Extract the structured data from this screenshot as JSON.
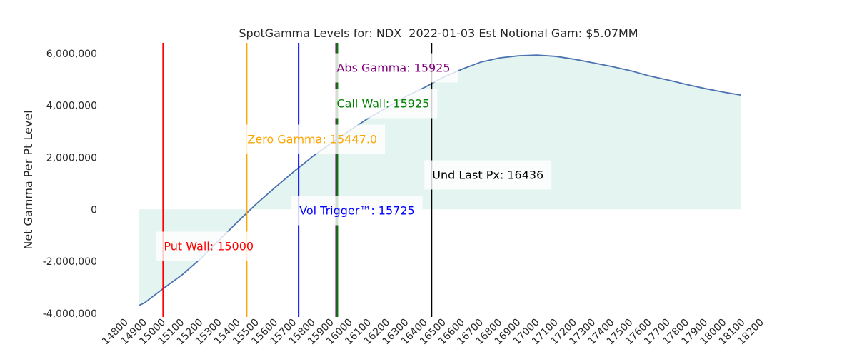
{
  "chart_data": {
    "type": "line",
    "title": "SpotGamma Levels for: NDX  2022-01-03 Est Notional Gam: $5.07MM",
    "y_label": "Net Gamma Per Pt Level",
    "x": [
      14870,
      14900,
      15000,
      15100,
      15200,
      15300,
      15400,
      15500,
      15600,
      15700,
      15800,
      15900,
      16000,
      16100,
      16200,
      16300,
      16400,
      16500,
      16600,
      16700,
      16800,
      16900,
      17000,
      17100,
      17200,
      17300,
      17400,
      17500,
      17600,
      17700,
      17800,
      17900,
      18000,
      18090
    ],
    "series": [
      {
        "name": "Net Gamma",
        "color": "#4c72b0",
        "fill": "#e3f4f1",
        "values": [
          -3700000,
          -3600000,
          -3050000,
          -2530000,
          -1900000,
          -1180000,
          -470000,
          220000,
          850000,
          1460000,
          2040000,
          2560000,
          3050000,
          3520000,
          3930000,
          4350000,
          4700000,
          5090000,
          5400000,
          5670000,
          5830000,
          5910000,
          5940000,
          5890000,
          5780000,
          5640000,
          5500000,
          5340000,
          5140000,
          4980000,
          4810000,
          4650000,
          4510000,
          4400000
        ]
      }
    ],
    "levels": [
      {
        "label": "Abs Gamma: 15925",
        "value": 15925,
        "color": "#800080"
      },
      {
        "label": "Call Wall: 15925",
        "value": 15925,
        "color": "#008000"
      },
      {
        "label": "Zero Gamma: 15447.0",
        "value": 15447.0,
        "color": "#ffa500"
      },
      {
        "label": "Und Last Px: 16436",
        "value": 16436,
        "color": "#000000"
      },
      {
        "label": "Vol Trigger™: 15725",
        "value": 15725,
        "color": "#0000ff"
      },
      {
        "label": "Put Wall: 15000",
        "value": 15000,
        "color": "#ff0000"
      }
    ],
    "xlim": [
      14800,
      18200
    ],
    "xticks": [
      14800,
      14900,
      15000,
      15100,
      15200,
      15300,
      15400,
      15500,
      15600,
      15700,
      15800,
      15900,
      16000,
      16100,
      16200,
      16300,
      16400,
      16500,
      16600,
      16700,
      16800,
      16900,
      17000,
      17100,
      17200,
      17300,
      17400,
      17500,
      17600,
      17700,
      17800,
      17900,
      18000,
      18100,
      18200
    ],
    "ylim": [
      -4140000,
      6410000
    ],
    "yticks": [
      {
        "value": -4000000,
        "label": "-4,000,000"
      },
      {
        "value": -2000000,
        "label": "-2,000,000"
      },
      0,
      {
        "value": 2000000,
        "label": "2,000,000"
      },
      {
        "value": 4000000,
        "label": "4,000,000"
      },
      {
        "value": 6000000,
        "label": "6,000,000"
      }
    ],
    "grid": false
  }
}
